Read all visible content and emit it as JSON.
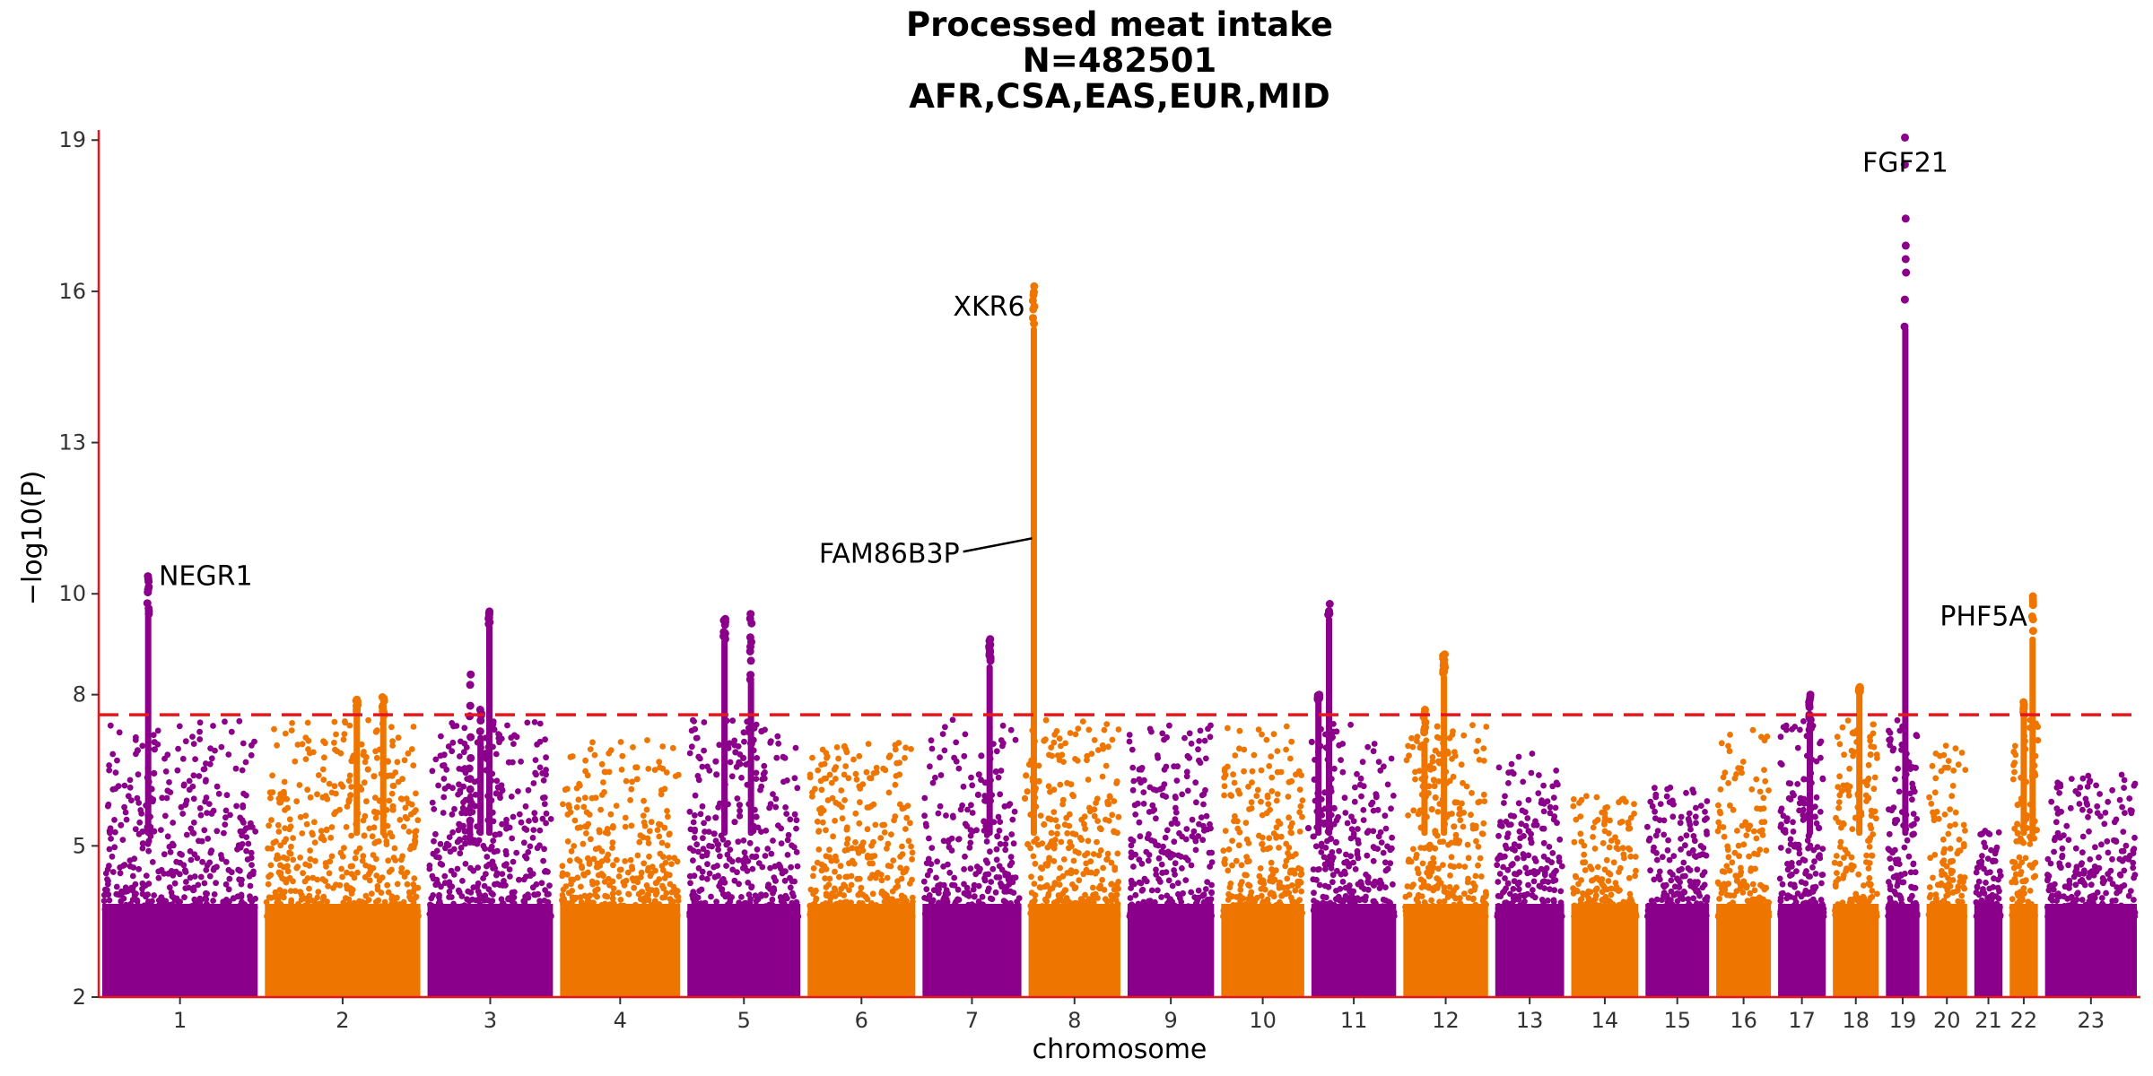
{
  "chart_data": {
    "type": "scatter",
    "subtype": "manhattan",
    "title_lines": [
      "Processed meat intake",
      "N=482501",
      "AFR,CSA,EAS,EUR,MID"
    ],
    "xlabel": "chromosome",
    "ylabel": "−log10(P)",
    "ylim": [
      2,
      19.2
    ],
    "y_ticks": [
      2,
      5,
      8,
      10,
      13,
      16,
      19
    ],
    "significance_threshold": 7.6,
    "threshold_style": "red dashed",
    "grid": false,
    "legend": "none",
    "colors": {
      "odd_chromosome": "#8B008B",
      "even_chromosome": "#EE7600",
      "threshold": "#E8161B",
      "axis": "#E8161B"
    },
    "chromosomes": [
      {
        "label": "1",
        "start": 0,
        "end": 9.2,
        "max": 10.35
      },
      {
        "label": "2",
        "start": 9.2,
        "end": 18.4,
        "max": 7.95
      },
      {
        "label": "3",
        "start": 18.4,
        "end": 25.9,
        "max": 9.65
      },
      {
        "label": "4",
        "start": 25.9,
        "end": 33.1,
        "max": 7.1
      },
      {
        "label": "5",
        "start": 33.1,
        "end": 39.9,
        "max": 9.6
      },
      {
        "label": "6",
        "start": 39.9,
        "end": 46.4,
        "max": 7.1
      },
      {
        "label": "7",
        "start": 46.4,
        "end": 52.4,
        "max": 9.1
      },
      {
        "label": "8",
        "start": 52.4,
        "end": 58.0,
        "max": 16.1
      },
      {
        "label": "9",
        "start": 58.0,
        "end": 63.3,
        "max": 7.4
      },
      {
        "label": "10",
        "start": 63.3,
        "end": 68.4,
        "max": 7.5
      },
      {
        "label": "11",
        "start": 68.4,
        "end": 73.6,
        "max": 9.8
      },
      {
        "label": "12",
        "start": 73.6,
        "end": 78.8,
        "max": 8.8
      },
      {
        "label": "13",
        "start": 78.8,
        "end": 83.1,
        "max": 6.9
      },
      {
        "label": "14",
        "start": 83.1,
        "end": 87.3,
        "max": 6.0
      },
      {
        "label": "15",
        "start": 87.3,
        "end": 91.3,
        "max": 6.2
      },
      {
        "label": "16",
        "start": 91.3,
        "end": 94.8,
        "max": 7.3
      },
      {
        "label": "17",
        "start": 94.8,
        "end": 97.9,
        "max": 8.0
      },
      {
        "label": "18",
        "start": 97.9,
        "end": 100.9,
        "max": 8.15
      },
      {
        "label": "19",
        "start": 100.9,
        "end": 103.2,
        "max": 19.05
      },
      {
        "label": "20",
        "start": 103.2,
        "end": 105.9,
        "max": 7.3
      },
      {
        "label": "21",
        "start": 105.9,
        "end": 107.9,
        "max": 5.3
      },
      {
        "label": "22",
        "start": 107.9,
        "end": 109.9,
        "max": 9.95
      },
      {
        "label": "23",
        "start": 109.9,
        "end": 115.5,
        "max": 6.5
      }
    ],
    "peaks": [
      {
        "chr": "1",
        "pos": 2.8,
        "top": 10.35,
        "body": 9.6
      },
      {
        "chr": "2",
        "pos": 14.6,
        "top": 7.9,
        "body": 7.6
      },
      {
        "chr": "2",
        "pos": 16.1,
        "top": 7.95,
        "body": 7.6
      },
      {
        "chr": "3",
        "pos": 21.0,
        "top": 8.4,
        "body": 5.5
      },
      {
        "chr": "3",
        "pos": 21.6,
        "top": 7.7,
        "body": 7.2
      },
      {
        "chr": "3",
        "pos": 22.1,
        "top": 9.65,
        "body": 9.4
      },
      {
        "chr": "5",
        "pos": 35.4,
        "top": 9.5,
        "body": 9.1
      },
      {
        "chr": "5",
        "pos": 36.9,
        "top": 9.6,
        "body": 8.3
      },
      {
        "chr": "7",
        "pos": 50.4,
        "top": 9.1,
        "body": 8.6
      },
      {
        "chr": "8",
        "pos": 52.9,
        "top": 16.1,
        "body": 15.3
      },
      {
        "chr": "11",
        "pos": 69.0,
        "top": 8.0,
        "body": 7.9
      },
      {
        "chr": "11",
        "pos": 69.6,
        "top": 9.8,
        "body": 9.55
      },
      {
        "chr": "12",
        "pos": 75.0,
        "top": 7.7,
        "body": 7.0
      },
      {
        "chr": "12",
        "pos": 76.1,
        "top": 8.8,
        "body": 8.4
      },
      {
        "chr": "17",
        "pos": 96.8,
        "top": 8.0,
        "body": 7.3
      },
      {
        "chr": "18",
        "pos": 99.6,
        "top": 8.15,
        "body": 8.05
      },
      {
        "chr": "19",
        "pos": 102.2,
        "top": 19.05,
        "body": 15.3
      },
      {
        "chr": "22",
        "pos": 108.9,
        "top": 7.85,
        "body": 7.6
      },
      {
        "chr": "22",
        "pos": 109.4,
        "top": 9.95,
        "body": 9.15
      }
    ],
    "annotations": [
      {
        "text": "NEGR1",
        "chr": "1",
        "pos": 2.8,
        "y": 10.35,
        "dx_label": 0.6,
        "y_label": 10.35,
        "anchor": "start",
        "leader": false
      },
      {
        "text": "XKR6",
        "chr": "8",
        "pos": 52.9,
        "y": 16.1,
        "dx_label": -0.5,
        "y_label": 15.7,
        "anchor": "end",
        "leader": false
      },
      {
        "text": "FAM86B3P",
        "chr": "8",
        "pos": 52.9,
        "y": 11.1,
        "dx_label": -4.2,
        "y_label": 10.8,
        "anchor": "end",
        "leader": true
      },
      {
        "text": "FGF21",
        "chr": "19",
        "pos": 102.2,
        "y": 19.05,
        "dx_label": 0.0,
        "y_label": 18.55,
        "anchor": "middle",
        "leader": false
      },
      {
        "text": "PHF5A",
        "chr": "22",
        "pos": 109.4,
        "y": 9.95,
        "dx_label": -0.3,
        "y_label": 9.55,
        "anchor": "end",
        "leader": false
      }
    ]
  }
}
